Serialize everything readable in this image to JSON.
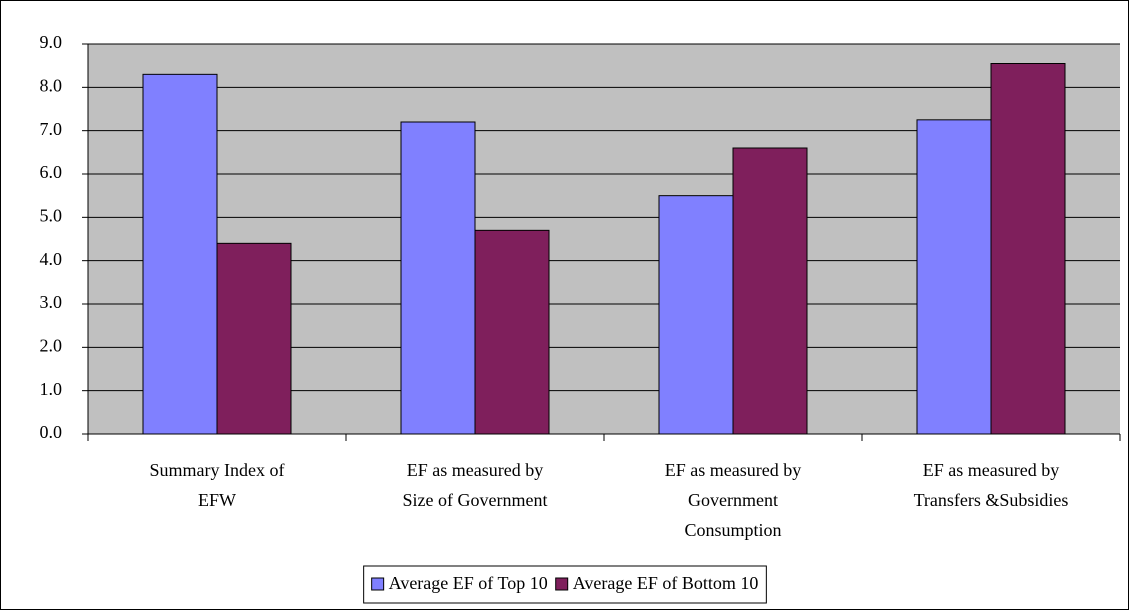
{
  "chart_data": {
    "type": "bar",
    "categories": [
      [
        "Summary Index of",
        "EFW"
      ],
      [
        "EF as measured by",
        "Size of Government"
      ],
      [
        "EF as measured by",
        "Government",
        "Consumption"
      ],
      [
        "EF as measured by",
        "Transfers &Subsidies"
      ]
    ],
    "series": [
      {
        "name": "Average EF of Top 10",
        "color": "#8080ff",
        "values": [
          8.3,
          7.2,
          5.5,
          7.25
        ]
      },
      {
        "name": "Average EF of Bottom 10",
        "color": "#7f1f5c",
        "values": [
          4.4,
          4.7,
          6.6,
          8.55
        ]
      }
    ],
    "ylim": [
      0,
      9
    ],
    "yticks": [
      {
        "value": 0,
        "label": "0.0"
      },
      {
        "value": 1,
        "label": "1.0"
      },
      {
        "value": 2,
        "label": "2.0"
      },
      {
        "value": 3,
        "label": "3.0"
      },
      {
        "value": 4,
        "label": "4.0"
      },
      {
        "value": 5,
        "label": "5.0"
      },
      {
        "value": 6,
        "label": "6.0"
      },
      {
        "value": 7,
        "label": "7.0"
      },
      {
        "value": 8,
        "label": "8.0"
      },
      {
        "value": 9,
        "label": "9.0"
      }
    ],
    "grid": true,
    "legend": "bottom"
  }
}
